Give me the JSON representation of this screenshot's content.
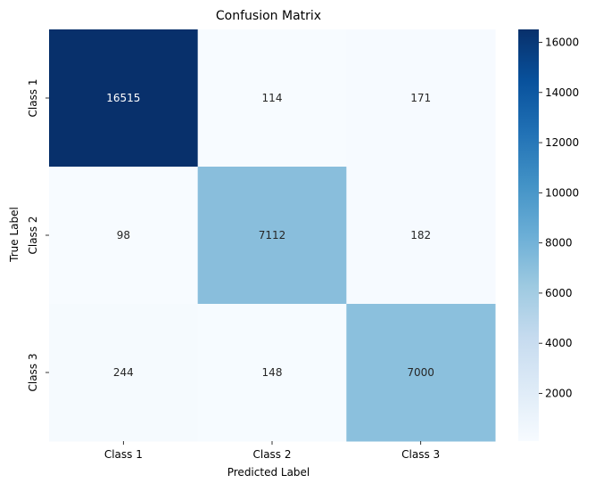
{
  "chart_data": {
    "type": "heatmap",
    "title": "Confusion Matrix",
    "xlabel": "Predicted Label",
    "ylabel": "True Label",
    "x_categories": [
      "Class 1",
      "Class 2",
      "Class 3"
    ],
    "y_categories": [
      "Class 1",
      "Class 2",
      "Class 3"
    ],
    "values": [
      [
        16515,
        114,
        171
      ],
      [
        98,
        7112,
        182
      ],
      [
        244,
        148,
        7000
      ]
    ],
    "colormap": "Blues",
    "colorbar": {
      "range": [
        98,
        16515
      ],
      "ticks": [
        2000,
        4000,
        6000,
        8000,
        10000,
        12000,
        14000,
        16000
      ]
    }
  }
}
